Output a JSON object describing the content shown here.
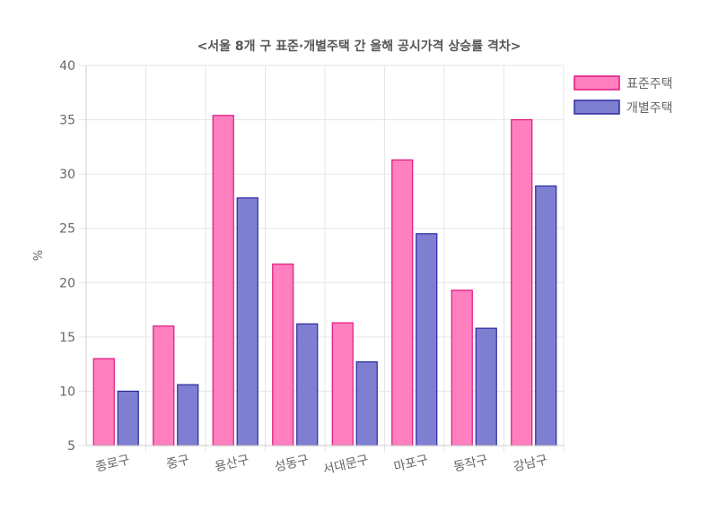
{
  "chart_data": {
    "type": "bar",
    "title": "<서울 8개 구 표준·개별주택 간 올해 공시가격 상승률 격차>",
    "xlabel": "",
    "ylabel": "%",
    "ylim": [
      5,
      40
    ],
    "yticks": [
      5,
      10,
      15,
      20,
      25,
      30,
      35,
      40
    ],
    "categories": [
      "종로구",
      "중구",
      "용산구",
      "성동구",
      "서대문구",
      "마포구",
      "동작구",
      "강남구"
    ],
    "series": [
      {
        "name": "표준주택",
        "values": [
          13.0,
          16.0,
          35.4,
          21.7,
          16.3,
          31.3,
          19.3,
          35.0
        ],
        "fill": "#ff7fbf",
        "stroke": "#e0177f"
      },
      {
        "name": "개별주택",
        "values": [
          10.0,
          10.6,
          27.8,
          16.2,
          12.7,
          24.5,
          15.8,
          28.9
        ],
        "fill": "#7f7fd2",
        "stroke": "#2a2aa0"
      }
    ],
    "grid": true,
    "legend_position": "right"
  }
}
